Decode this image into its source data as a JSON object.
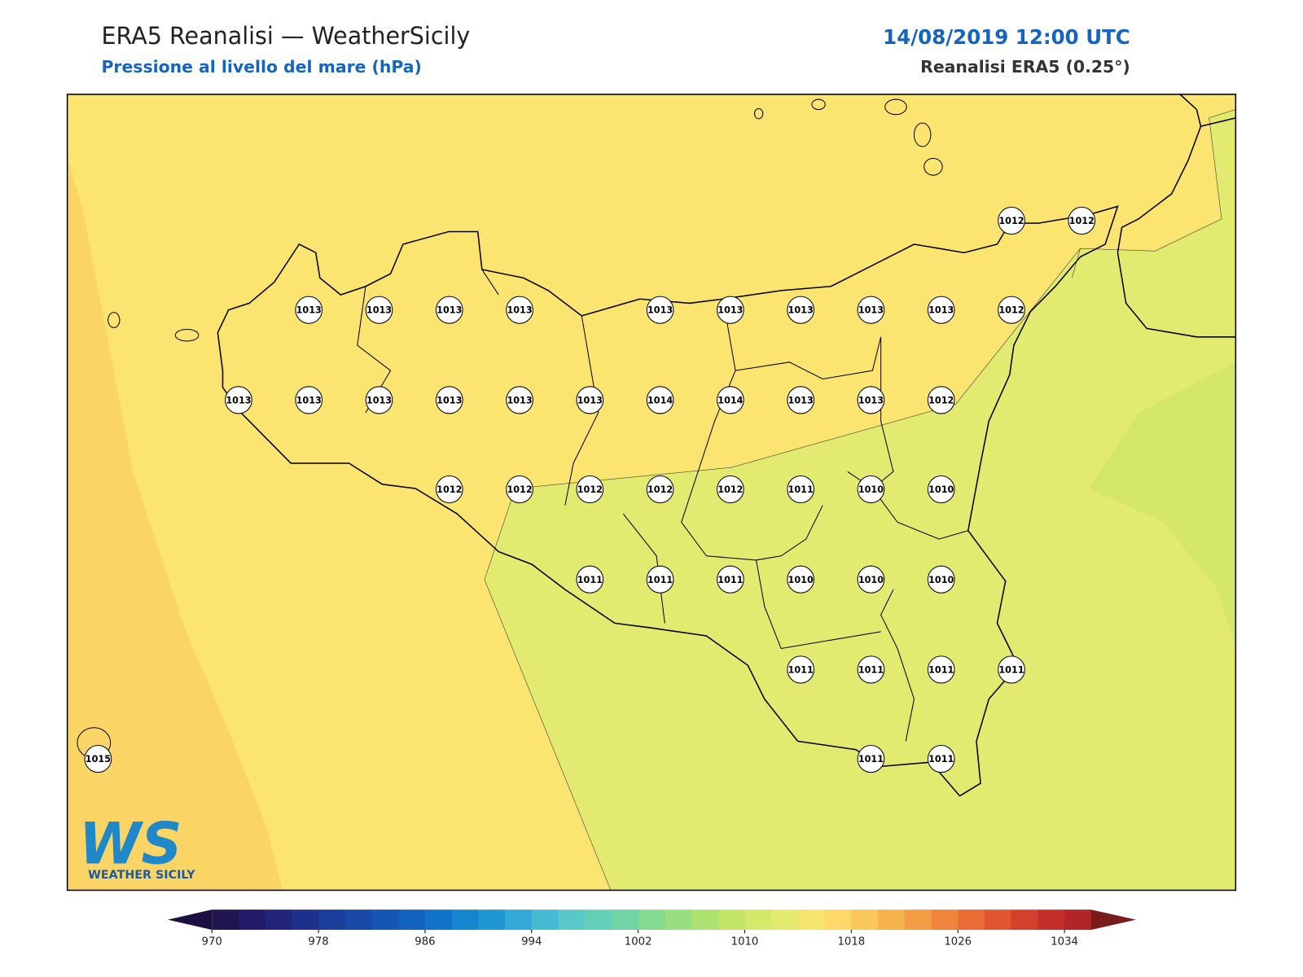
{
  "header": {
    "title": "ERA5 Reanalisi — WeatherSicily",
    "subtitle": "Pressione al livello del mare (hPa)",
    "datetime": "14/08/2019 12:00 UTC",
    "source": "Reanalisi ERA5 (0.25°)"
  },
  "stations": {
    "rows": [
      [
        null,
        null,
        null,
        null,
        null,
        null,
        null,
        null,
        null,
        null,
        null,
        null,
        null,
        1012,
        1012
      ],
      [
        null,
        null,
        null,
        1013,
        1013,
        1013,
        1013,
        null,
        1013,
        1013,
        1013,
        1013,
        1013,
        1012,
        null
      ],
      [
        null,
        null,
        1013,
        1013,
        1013,
        1013,
        1013,
        1013,
        1014,
        1014,
        1013,
        1013,
        1012,
        null,
        null
      ],
      [
        null,
        null,
        null,
        null,
        null,
        1012,
        1012,
        1012,
        1012,
        1012,
        1011,
        1010,
        1010,
        null,
        null
      ],
      [
        null,
        null,
        null,
        null,
        null,
        null,
        null,
        1011,
        1011,
        1011,
        1010,
        1010,
        1010,
        null,
        null
      ],
      [
        null,
        null,
        null,
        null,
        null,
        null,
        null,
        null,
        null,
        null,
        1011,
        1011,
        1011,
        1011,
        null
      ],
      [
        1015,
        null,
        null,
        null,
        null,
        null,
        null,
        null,
        null,
        null,
        null,
        1011,
        1011,
        null,
        null
      ]
    ]
  },
  "colorbar": {
    "lim": [
      970,
      1036
    ],
    "ticks": [
      970,
      978,
      986,
      994,
      1002,
      1010,
      1018,
      1026,
      1034
    ],
    "colors": [
      "#1f1650",
      "#221a66",
      "#222479",
      "#1d308c",
      "#1a3d9c",
      "#1849a8",
      "#1456b4",
      "#1064bf",
      "#0f74c8",
      "#1485cf",
      "#1f96d4",
      "#33a9d7",
      "#47bbd4",
      "#58c8c8",
      "#62cfb6",
      "#70d4a5",
      "#83da91",
      "#98de7f",
      "#aee270",
      "#c2e566",
      "#d4e86a",
      "#e4ea70",
      "#f6e56d",
      "#fcd968",
      "#f9c75b",
      "#f6b34e",
      "#f39c43",
      "#ef853b",
      "#e96c34",
      "#e1552f",
      "#d5402c",
      "#c52f2a",
      "#b22426"
    ],
    "under": "#1a0f40",
    "over": "#7a1c1c"
  },
  "logo": {
    "mark": "WS",
    "name": "WEATHER SICILY"
  }
}
